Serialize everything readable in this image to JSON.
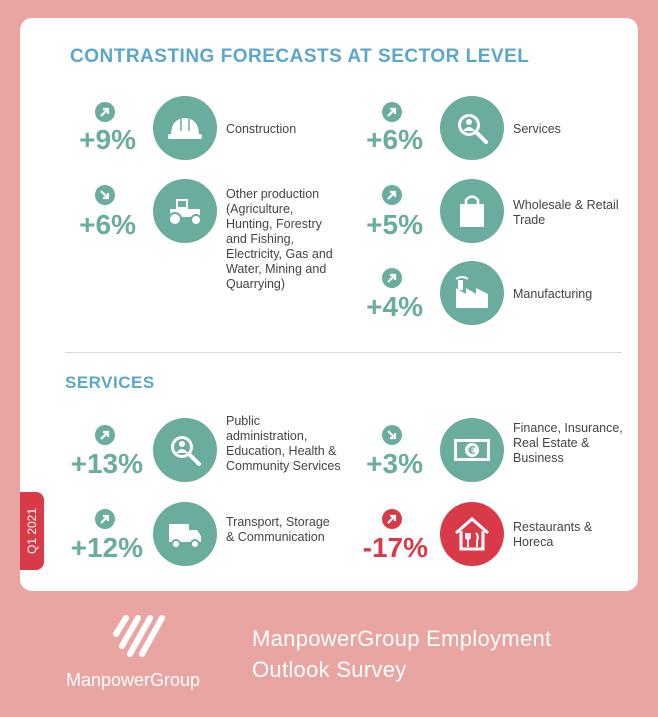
{
  "sections": [
    {
      "title": "CONTRASTING FORECASTS AT SECTOR LEVEL"
    },
    {
      "title": "SERVICES"
    }
  ],
  "items": [
    {
      "value": "+9%",
      "label": "Construction",
      "direction": "up",
      "icon": "hard-hat-icon"
    },
    {
      "value": "+6%",
      "label": "Other production (Agriculture, Hunting, Forestry and Fishing, Electricity, Gas and Water, Mining and Quarrying)",
      "direction": "down",
      "icon": "tractor-icon"
    },
    {
      "value": "+6%",
      "label": "Services",
      "direction": "up",
      "icon": "magnifier-person-icon"
    },
    {
      "value": "+5%",
      "label": "Wholesale & Retail Trade",
      "direction": "up",
      "icon": "shopping-bag-icon"
    },
    {
      "value": "+4%",
      "label": "Manufacturing",
      "direction": "up",
      "icon": "factory-icon"
    },
    {
      "value": "+13%",
      "label": "Public administration, Education, Health & Community Services",
      "direction": "up",
      "icon": "magnifier-person-icon"
    },
    {
      "value": "+12%",
      "label": "Transport, Storage & Communication",
      "direction": "up",
      "icon": "truck-icon"
    },
    {
      "value": "+3%",
      "label": "Finance, Insurance, Real Estate & Business",
      "direction": "down",
      "icon": "euro-banknote-icon"
    },
    {
      "value": "-17%",
      "label": "Restaurants & Horeca",
      "direction": "up",
      "icon": "restaurant-house-icon"
    }
  ],
  "colors": {
    "positive": "#6aac9d",
    "negative": "#d83a48",
    "title": "#5aa7c9",
    "background": "#e9a5a2"
  },
  "period_tab": "Q1 2021",
  "brand": "ManpowerGroup",
  "survey_title_line1": "ManpowerGroup Employment",
  "survey_title_line2": "Outlook Survey"
}
